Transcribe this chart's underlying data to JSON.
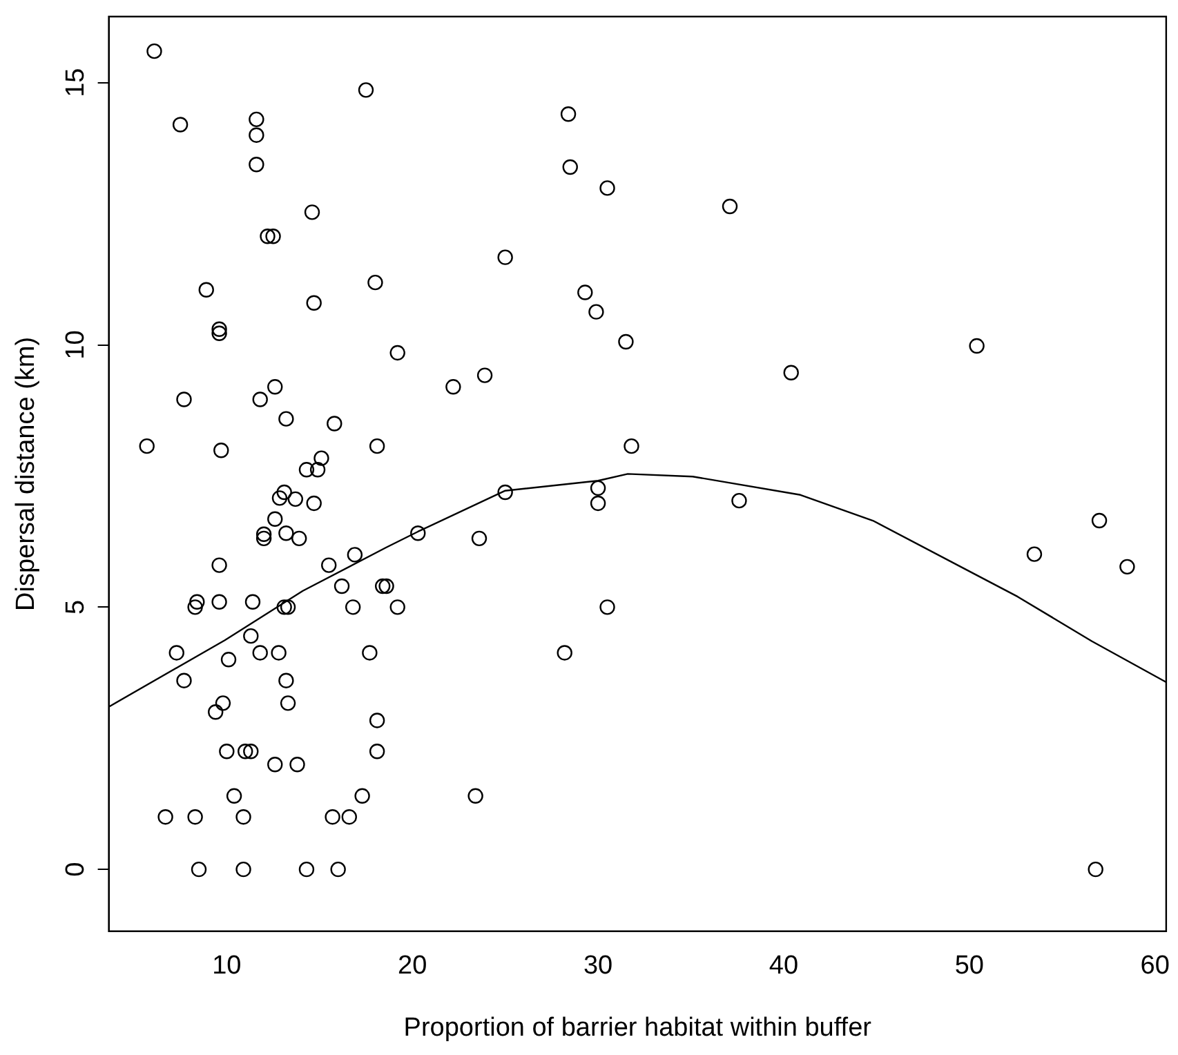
{
  "chart_data": {
    "type": "scatter",
    "xlabel": "Proportion of barrier habitat within buffer",
    "ylabel": "Dispersal distance (km)",
    "xlim": [
      3.65,
      60.6
    ],
    "ylim": [
      -1.18,
      16.26
    ],
    "xticks": [
      10,
      20,
      30,
      40,
      50,
      60
    ],
    "yticks": [
      0,
      5,
      10,
      15
    ],
    "grid": false,
    "legend": false,
    "marker": "circle",
    "series": [
      {
        "color": "#000000",
        "x": [
          6.1,
          17.5,
          7.5,
          11.6,
          11.6,
          11.6,
          14.6,
          12.2,
          12.5,
          18.0,
          8.9,
          14.7,
          9.6,
          9.6,
          7.7,
          12.6,
          11.8,
          13.2,
          15.8,
          5.7,
          9.7,
          18.1,
          15.1,
          14.3,
          14.9,
          13.1,
          12.85,
          13.7,
          14.7,
          12.6,
          12.0,
          12.0,
          13.2,
          13.9,
          9.6,
          15.5,
          16.9,
          18.4,
          16.2,
          16.8,
          8.4,
          8.3,
          9.6,
          11.4,
          13.1,
          13.3,
          11.3,
          7.3,
          10.1,
          11.8,
          12.8,
          17.7,
          7.7,
          13.2,
          9.8,
          9.4,
          13.3,
          18.1,
          18.1,
          10.0,
          11.0,
          11.3,
          12.6,
          13.8,
          10.4,
          17.3,
          6.7,
          8.3,
          10.9,
          15.7,
          16.6,
          8.5,
          10.9,
          14.3,
          16.0,
          25.0,
          20.3,
          23.6,
          30.0,
          30.0,
          18.6,
          19.2,
          30.5,
          28.2,
          23.4,
          28.4,
          28.5,
          30.5,
          25.0,
          29.3,
          29.9,
          31.5,
          19.2,
          22.2,
          23.9,
          31.8,
          37.1,
          50.4,
          40.4,
          37.6,
          53.5,
          57.0,
          58.5,
          56.8
        ],
        "values": [
          15.6,
          14.86,
          14.2,
          14.3,
          14.0,
          13.44,
          12.53,
          12.07,
          12.07,
          11.19,
          11.05,
          10.8,
          10.3,
          10.22,
          8.96,
          9.2,
          8.96,
          8.59,
          8.5,
          8.07,
          7.99,
          8.07,
          7.84,
          7.62,
          7.62,
          7.19,
          7.08,
          7.06,
          6.98,
          6.68,
          6.39,
          6.31,
          6.41,
          6.31,
          5.8,
          5.8,
          6.0,
          5.4,
          5.4,
          5.0,
          5.1,
          5.0,
          5.1,
          5.1,
          5.0,
          5.0,
          4.45,
          4.13,
          4.0,
          4.13,
          4.13,
          4.13,
          3.6,
          3.6,
          3.17,
          3.0,
          3.17,
          2.84,
          2.25,
          2.25,
          2.25,
          2.25,
          2.0,
          2.0,
          1.4,
          1.4,
          1.0,
          1.0,
          1.0,
          1.0,
          1.0,
          0,
          0,
          0,
          0,
          7.19,
          6.41,
          6.31,
          7.27,
          6.98,
          5.4,
          5.0,
          5.0,
          4.13,
          1.4,
          14.4,
          13.39,
          12.99,
          11.67,
          11.0,
          10.63,
          10.06,
          9.85,
          9.2,
          9.42,
          8.07,
          12.64,
          9.98,
          9.47,
          7.03,
          6.01,
          6.65,
          5.77,
          0
        ]
      },
      {
        "type": "line",
        "color": "#000000",
        "marker": "none",
        "x": [
          3.65,
          9.9,
          14.1,
          18.6,
          20.3,
          25.0,
          30.0,
          31.6,
          35.1,
          40.9,
          44.8,
          49.8,
          52.6,
          56.6,
          60.6
        ],
        "values": [
          3.1,
          4.37,
          5.31,
          6.14,
          6.44,
          7.22,
          7.41,
          7.54,
          7.49,
          7.14,
          6.65,
          5.72,
          5.2,
          4.35,
          3.57
        ]
      }
    ]
  }
}
